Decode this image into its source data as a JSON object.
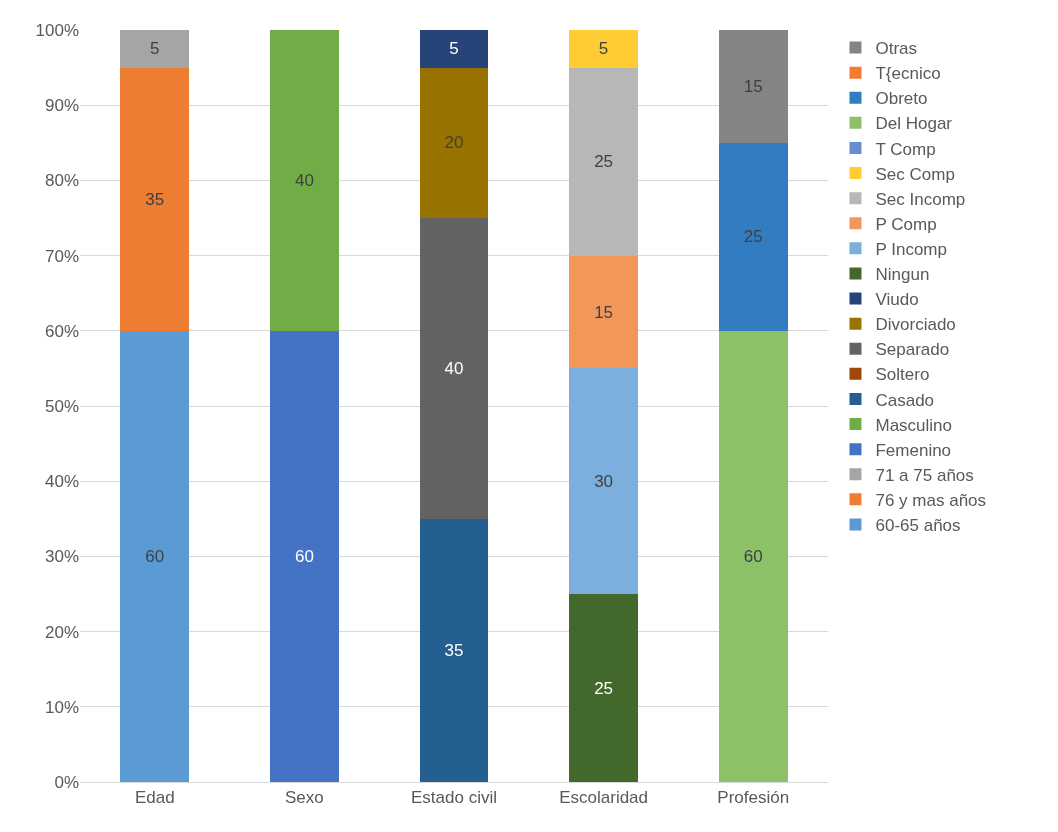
{
  "chart_data": {
    "type": "bar",
    "stacked": true,
    "categories": [
      "Edad",
      "Sexo",
      "Estado civil",
      "Escolaridad",
      "Profesión"
    ],
    "series": [
      {
        "name": "60-65 años",
        "color": "#5b9bd5",
        "values": [
          60,
          null,
          null,
          null,
          null
        ]
      },
      {
        "name": "76 y mas años",
        "color": "#ffc000",
        "colors": [
          "#ed7d31",
          null,
          null,
          null,
          null
        ],
        "values": [
          35,
          null,
          null,
          null,
          null
        ]
      },
      {
        "name": "71 a 75 años",
        "color": "#a5a5a5",
        "values": [
          5,
          null,
          null,
          null,
          null
        ]
      },
      {
        "name": "Femenino",
        "color": "#4472c4",
        "values": [
          null,
          60,
          null,
          null,
          null
        ]
      },
      {
        "name": "Masculino",
        "color": "#70ad47",
        "values": [
          null,
          40,
          null,
          null,
          null
        ]
      },
      {
        "name": "Casado",
        "color": "#255e91",
        "values": [
          null,
          null,
          35,
          null,
          null
        ]
      },
      {
        "name": "Soltero",
        "color": "#9e480e",
        "values": [
          null,
          null,
          null,
          null,
          null
        ]
      },
      {
        "name": "Separado",
        "color": "#636363",
        "values": [
          null,
          null,
          40,
          null,
          null
        ]
      },
      {
        "name": "Divorciado",
        "color": "#997300",
        "values": [
          null,
          null,
          20,
          null,
          null
        ]
      },
      {
        "name": "Viudo",
        "color": "#264478",
        "values": [
          null,
          null,
          5,
          null,
          null
        ]
      },
      {
        "name": "Ningun",
        "color": "#43682b",
        "values": [
          null,
          null,
          null,
          25,
          null
        ]
      },
      {
        "name": "P Incomp",
        "color": "#7cafdd",
        "values": [
          null,
          null,
          null,
          30,
          null
        ]
      },
      {
        "name": "P Comp",
        "color": "#f1975a",
        "values": [
          null,
          null,
          null,
          15,
          null
        ]
      },
      {
        "name": "Sec Incomp",
        "color": "#b7b7b7",
        "values": [
          null,
          null,
          null,
          25,
          null
        ]
      },
      {
        "name": "Sec Comp",
        "color": "#ffcd33",
        "values": [
          null,
          null,
          null,
          5,
          null
        ]
      },
      {
        "name": "T Comp",
        "color": "#698ed0",
        "values": [
          null,
          null,
          null,
          null,
          null
        ]
      },
      {
        "name": "Del Hogar",
        "color": "#8cc168",
        "values": [
          null,
          null,
          null,
          null,
          60
        ]
      },
      {
        "name": "Obreto",
        "color": "#327dc2",
        "values": [
          null,
          null,
          null,
          null,
          25
        ]
      },
      {
        "name": "T{ecnico",
        "color": "#f47c30",
        "values": [
          null,
          null,
          null,
          null,
          null
        ]
      },
      {
        "name": "Otras",
        "color": "#848484",
        "values": [
          null,
          null,
          null,
          null,
          15
        ]
      }
    ],
    "ylim": [
      0,
      100
    ],
    "yticks": [
      {
        "value": 0,
        "label": "0%"
      },
      {
        "value": 10,
        "label": "10%"
      },
      {
        "value": 20,
        "label": "20%"
      },
      {
        "value": 30,
        "label": "30%"
      },
      {
        "value": 40,
        "label": "40%"
      },
      {
        "value": 50,
        "label": "50%"
      },
      {
        "value": 60,
        "label": "60%"
      },
      {
        "value": 70,
        "label": "70%"
      },
      {
        "value": 80,
        "label": "80%"
      },
      {
        "value": 90,
        "label": "90%"
      },
      {
        "value": 100,
        "label": "100%"
      }
    ],
    "grid": "y",
    "legend": "right",
    "data_labels": true
  }
}
